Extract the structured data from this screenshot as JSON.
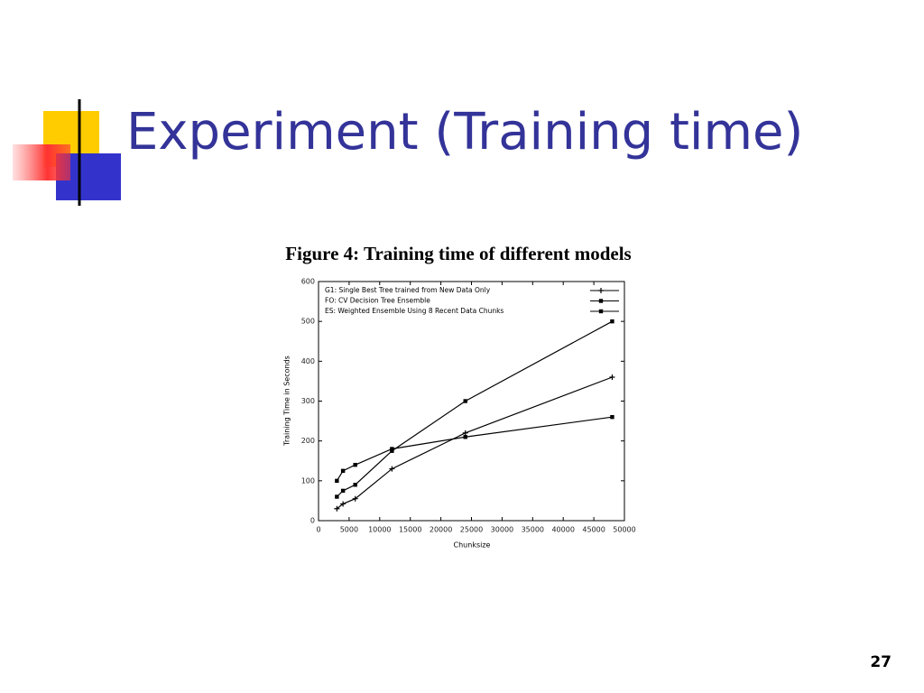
{
  "slide": {
    "title": "Experiment (Training time)",
    "page": "27"
  },
  "chart_data": {
    "type": "line",
    "title": "Figure 4: Training time of different models",
    "x_label": "Chunksize",
    "y_label": "Training Time in Seconds",
    "x": [
      3000,
      4000,
      6000,
      12000,
      24000,
      48000
    ],
    "series": [
      {
        "name": "G1: Single Best Tree trained from  New Data Only",
        "color": "#000000",
        "marker": "plus",
        "values": [
          30,
          42,
          55,
          130,
          220,
          360
        ]
      },
      {
        "name": "FO: CV Decision Tree Ensemble",
        "color": "#000000",
        "marker": "square",
        "values": [
          60,
          75,
          90,
          175,
          300,
          500
        ]
      },
      {
        "name": "ES: Weighted Ensemble Using 8 Recent Data Chunks",
        "color": "#000000",
        "marker": "square",
        "values": [
          100,
          125,
          140,
          180,
          210,
          260
        ]
      }
    ],
    "xlim": [
      0,
      50000
    ],
    "xticks": [
      0,
      5000,
      10000,
      15000,
      20000,
      25000,
      30000,
      35000,
      40000,
      45000,
      50000
    ],
    "ylim": [
      0,
      600
    ],
    "yticks": [
      0,
      100,
      200,
      300,
      400,
      500,
      600
    ],
    "legend": "upper right",
    "grid": false
  }
}
